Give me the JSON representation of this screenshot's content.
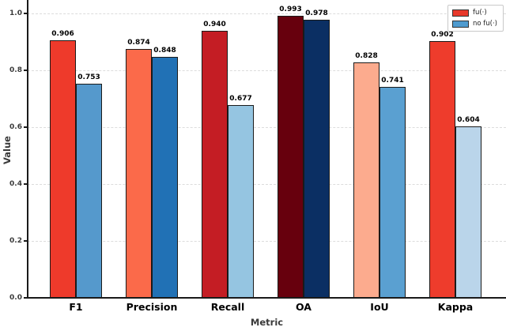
{
  "chart_data": {
    "type": "bar",
    "title": "",
    "xlabel": "Metric",
    "ylabel": "Value",
    "categories": [
      "F1",
      "Precision",
      "Recall",
      "OA",
      "IoU",
      "Kappa"
    ],
    "series": [
      {
        "name": "fu(·)",
        "values": [
          0.906,
          0.874,
          0.94,
          0.993,
          0.828,
          0.902
        ],
        "colors": [
          "#ee3a2b",
          "#fb6a4a",
          "#c41d24",
          "#67000d",
          "#fcab8e",
          "#ee3c2c"
        ],
        "legend_color": "#e8392b"
      },
      {
        "name": "no fu(·)",
        "values": [
          0.753,
          0.848,
          0.677,
          0.978,
          0.741,
          0.604
        ],
        "colors": [
          "#5599cc",
          "#2171b5",
          "#95c5e1",
          "#0b2f63",
          "#5aa0d1",
          "#bad5ea"
        ],
        "legend_color": "#4f9bcf"
      }
    ],
    "value_label_decimals": 3,
    "yticks": [
      0.0,
      0.2,
      0.4,
      0.6,
      0.8,
      1.0
    ],
    "ytick_labels": [
      "0.0",
      "0.2",
      "0.4",
      "0.6",
      "0.8",
      "1.0"
    ],
    "ylim": [
      0,
      1.047
    ],
    "grid": "horizontal-dashed",
    "legend_position": "upper-right",
    "bar_edge_color": "#1a1a1a"
  }
}
